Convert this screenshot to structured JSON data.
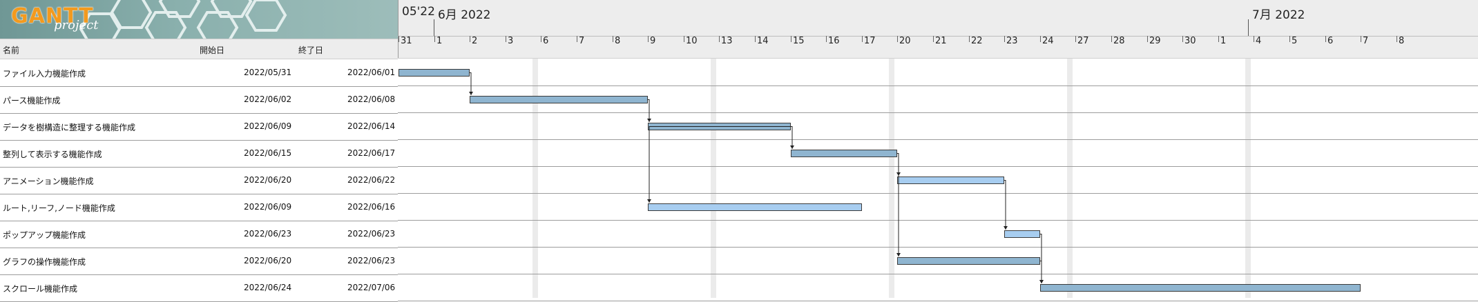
{
  "app": {
    "logo_text": "GANTT",
    "logo_subtext": "project"
  },
  "table": {
    "headers": {
      "name": "名前",
      "start": "開始日",
      "end": "終了日"
    },
    "tasks": [
      {
        "name": "ファイル入力機能作成",
        "start": "2022/05/31",
        "end": "2022/06/01"
      },
      {
        "name": "パース機能作成",
        "start": "2022/06/02",
        "end": "2022/06/08"
      },
      {
        "name": "データを樹構造に整理する機能作成",
        "start": "2022/06/09",
        "end": "2022/06/14"
      },
      {
        "name": "整列して表示する機能作成",
        "start": "2022/06/15",
        "end": "2022/06/17"
      },
      {
        "name": "アニメーション機能作成",
        "start": "2022/06/20",
        "end": "2022/06/22"
      },
      {
        "name": "ルート,リーフ,ノード機能作成",
        "start": "2022/06/09",
        "end": "2022/06/16"
      },
      {
        "name": "ポップアップ機能作成",
        "start": "2022/06/23",
        "end": "2022/06/23"
      },
      {
        "name": "グラフの操作機能作成",
        "start": "2022/06/20",
        "end": "2022/06/23"
      },
      {
        "name": "スクロール機能作成",
        "start": "2022/06/24",
        "end": "2022/07/06"
      }
    ]
  },
  "timeline": {
    "month_labels": [
      "05'22",
      "6月 2022",
      "7月 2022"
    ],
    "day_labels": [
      "31",
      "1",
      "2",
      "3",
      "6",
      "7",
      "8",
      "9",
      "10",
      "13",
      "14",
      "15",
      "16",
      "17",
      "20",
      "21",
      "22",
      "23",
      "24",
      "27",
      "28",
      "29",
      "30",
      "1",
      "4",
      "5",
      "6",
      "7",
      "8"
    ]
  },
  "colors": {
    "bar_dark": "#8fb5d0",
    "bar_light": "#a7cdf0",
    "bar_border": "#3a3a3a",
    "weekend": "#ebebeb",
    "header_bg": "#ededed",
    "logo_orange": "#f39a1e"
  }
}
